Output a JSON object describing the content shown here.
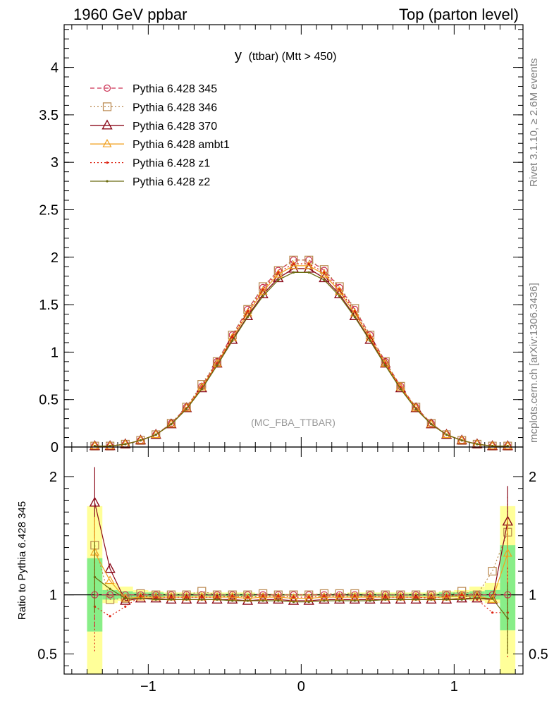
{
  "header": {
    "left": "1960 GeV ppbar",
    "right": "Top (parton level)"
  },
  "side_text": {
    "rivet": "Rivet 3.1.10, ≥ 2.6M events",
    "mcplots": "mcplots.cern.ch [arXiv:1306.3436]"
  },
  "chart_data": {
    "type": "line",
    "title_main": "y",
    "title_sub": "(ttbar) (Mtt > 450)",
    "watermark": "(MC_FBA_TTBAR)",
    "xlim": [
      -1.55,
      1.45
    ],
    "ylim": [
      0,
      4.45
    ],
    "x_ticks": [
      -1,
      0,
      1
    ],
    "x_tick_labels": [
      "−1",
      "0",
      "1"
    ],
    "y_ticks": [
      0,
      0.5,
      1,
      1.5,
      2,
      2.5,
      3,
      3.5,
      4
    ],
    "y_tick_labels": [
      "0",
      "0.5",
      "1",
      "1.5",
      "2",
      "2.5",
      "3",
      "3.5",
      "4"
    ],
    "x": [
      -1.35,
      -1.25,
      -1.15,
      -1.05,
      -0.95,
      -0.85,
      -0.75,
      -0.65,
      -0.55,
      -0.45,
      -0.35,
      -0.25,
      -0.15,
      -0.05,
      0.05,
      0.15,
      0.25,
      0.35,
      0.45,
      0.55,
      0.65,
      0.75,
      0.85,
      0.95,
      1.05,
      1.15,
      1.25,
      1.35
    ],
    "series": [
      {
        "name": "Pythia 6.428 345",
        "color": "#cc3355",
        "dash": "6,4",
        "marker": "circle",
        "values": [
          0.01,
          0.01,
          0.03,
          0.07,
          0.13,
          0.25,
          0.42,
          0.64,
          0.9,
          1.18,
          1.45,
          1.68,
          1.86,
          1.97,
          1.97,
          1.86,
          1.68,
          1.45,
          1.18,
          0.9,
          0.64,
          0.42,
          0.25,
          0.13,
          0.07,
          0.03,
          0.01,
          0.01
        ]
      },
      {
        "name": "Pythia 6.428 346",
        "color": "#b8864b",
        "dash": "2,3",
        "marker": "square",
        "values": [
          0.01,
          0.01,
          0.03,
          0.07,
          0.13,
          0.25,
          0.42,
          0.66,
          0.9,
          1.18,
          1.45,
          1.69,
          1.86,
          1.97,
          1.97,
          1.87,
          1.69,
          1.46,
          1.18,
          0.9,
          0.64,
          0.42,
          0.25,
          0.13,
          0.07,
          0.03,
          0.01,
          0.01
        ]
      },
      {
        "name": "Pythia 6.428 370",
        "color": "#8b0a1a",
        "dash": "",
        "marker": "triangle",
        "values": [
          0.01,
          0.01,
          0.03,
          0.07,
          0.13,
          0.24,
          0.41,
          0.62,
          0.88,
          1.13,
          1.38,
          1.61,
          1.78,
          1.88,
          1.88,
          1.78,
          1.61,
          1.38,
          1.13,
          0.88,
          0.62,
          0.41,
          0.24,
          0.13,
          0.07,
          0.03,
          0.01,
          0.01
        ]
      },
      {
        "name": "Pythia 6.428 ambt1",
        "color": "#f0a020",
        "dash": "",
        "marker": "triangle-open",
        "values": [
          0.01,
          0.01,
          0.03,
          0.07,
          0.13,
          0.24,
          0.41,
          0.63,
          0.88,
          1.15,
          1.41,
          1.64,
          1.82,
          1.91,
          1.91,
          1.82,
          1.64,
          1.41,
          1.15,
          0.88,
          0.63,
          0.41,
          0.24,
          0.13,
          0.07,
          0.03,
          0.01,
          0.01
        ]
      },
      {
        "name": "Pythia 6.428 z1",
        "color": "#dd2211",
        "dash": "2,3",
        "marker": "dot",
        "values": [
          0.01,
          0.01,
          0.03,
          0.07,
          0.13,
          0.24,
          0.41,
          0.63,
          0.88,
          1.16,
          1.43,
          1.66,
          1.84,
          1.93,
          1.93,
          1.84,
          1.66,
          1.43,
          1.16,
          0.88,
          0.63,
          0.41,
          0.24,
          0.13,
          0.07,
          0.03,
          0.01,
          0.01
        ]
      },
      {
        "name": "Pythia 6.428 z2",
        "color": "#6b6b10",
        "dash": "",
        "marker": "dot",
        "values": [
          0.01,
          0.01,
          0.03,
          0.07,
          0.13,
          0.24,
          0.4,
          0.61,
          0.86,
          1.12,
          1.37,
          1.59,
          1.76,
          1.84,
          1.84,
          1.76,
          1.59,
          1.37,
          1.12,
          0.86,
          0.61,
          0.4,
          0.24,
          0.13,
          0.07,
          0.03,
          0.01,
          0.01
        ]
      }
    ],
    "ratio": {
      "ylabel": "Ratio to Pythia 6.428 345",
      "ylim": [
        0.33,
        2.25
      ],
      "y_ticks": [
        0.5,
        1,
        2
      ],
      "y_tick_labels": [
        "0.5",
        "1",
        "2"
      ],
      "band_yellow": [
        [
          0.32,
          1.75
        ],
        [
          0.93,
          1.1
        ],
        [
          0.95,
          1.07
        ],
        [
          0.97,
          1.04
        ],
        [
          0.97,
          1.03
        ],
        [
          0.98,
          1.02
        ],
        [
          0.98,
          1.02
        ],
        [
          0.98,
          1.02
        ],
        [
          0.98,
          1.02
        ],
        [
          0.98,
          1.02
        ],
        [
          0.98,
          1.02
        ],
        [
          0.99,
          1.01
        ],
        [
          0.99,
          1.01
        ],
        [
          0.99,
          1.01
        ],
        [
          0.99,
          1.01
        ],
        [
          0.99,
          1.01
        ],
        [
          0.99,
          1.01
        ],
        [
          0.98,
          1.02
        ],
        [
          0.98,
          1.02
        ],
        [
          0.98,
          1.02
        ],
        [
          0.98,
          1.02
        ],
        [
          0.98,
          1.02
        ],
        [
          0.98,
          1.02
        ],
        [
          0.97,
          1.03
        ],
        [
          0.97,
          1.04
        ],
        [
          0.95,
          1.07
        ],
        [
          0.93,
          1.1
        ],
        [
          0.32,
          1.75
        ]
      ],
      "band_green": [
        [
          0.69,
          1.31
        ],
        [
          0.96,
          1.04
        ],
        [
          0.97,
          1.03
        ],
        [
          0.98,
          1.02
        ],
        [
          0.98,
          1.02
        ],
        [
          0.99,
          1.01
        ],
        [
          0.99,
          1.01
        ],
        [
          0.99,
          1.01
        ],
        [
          0.99,
          1.01
        ],
        [
          0.99,
          1.01
        ],
        [
          0.99,
          1.01
        ],
        [
          0.995,
          1.005
        ],
        [
          0.995,
          1.005
        ],
        [
          0.995,
          1.005
        ],
        [
          0.995,
          1.005
        ],
        [
          0.995,
          1.005
        ],
        [
          0.995,
          1.005
        ],
        [
          0.99,
          1.01
        ],
        [
          0.99,
          1.01
        ],
        [
          0.99,
          1.01
        ],
        [
          0.99,
          1.01
        ],
        [
          0.99,
          1.01
        ],
        [
          0.99,
          1.01
        ],
        [
          0.98,
          1.02
        ],
        [
          0.98,
          1.02
        ],
        [
          0.97,
          1.03
        ],
        [
          0.96,
          1.04
        ],
        [
          0.7,
          1.42
        ]
      ],
      "series_values": [
        [
          1,
          1,
          1,
          1,
          1,
          1,
          1,
          1,
          1,
          1,
          1,
          1,
          1,
          1,
          1,
          1,
          1,
          1,
          1,
          1,
          1,
          1,
          1,
          1,
          1,
          1,
          1,
          1
        ],
        [
          1.42,
          0.96,
          0.97,
          1.01,
          1.0,
          1.0,
          1.0,
          1.03,
          1.0,
          1.0,
          1.0,
          1.01,
          1.0,
          1.0,
          1.0,
          1.01,
          1.01,
          1.01,
          1.0,
          1.0,
          1.0,
          1.0,
          1.0,
          1.0,
          1.03,
          1.0,
          1.2,
          1.53
        ],
        [
          1.78,
          1.22,
          0.95,
          0.97,
          0.97,
          0.96,
          0.96,
          0.96,
          0.96,
          0.96,
          0.95,
          0.96,
          0.96,
          0.95,
          0.95,
          0.96,
          0.96,
          0.96,
          0.96,
          0.96,
          0.96,
          0.96,
          0.96,
          0.96,
          0.97,
          0.97,
          0.96,
          1.62
        ],
        [
          1.36,
          1.12,
          0.97,
          0.98,
          0.98,
          0.98,
          0.98,
          0.98,
          0.98,
          0.98,
          0.97,
          0.98,
          0.98,
          0.97,
          0.97,
          0.98,
          0.98,
          0.98,
          0.98,
          0.98,
          0.98,
          0.98,
          0.98,
          0.98,
          0.99,
          0.99,
          0.96,
          1.35
        ],
        [
          0.9,
          0.82,
          0.9,
          0.99,
          0.98,
          0.98,
          0.98,
          0.98,
          0.98,
          0.99,
          0.98,
          0.99,
          0.99,
          0.98,
          0.98,
          0.99,
          0.99,
          0.99,
          0.99,
          0.98,
          0.98,
          0.98,
          0.97,
          0.99,
          1.0,
          0.96,
          0.85,
          0.85
        ],
        [
          1.15,
          1.05,
          0.97,
          0.97,
          0.96,
          0.96,
          0.96,
          0.96,
          0.96,
          0.95,
          0.95,
          0.95,
          0.95,
          0.94,
          0.94,
          0.95,
          0.95,
          0.95,
          0.95,
          0.96,
          0.96,
          0.96,
          0.96,
          0.96,
          0.96,
          0.97,
          0.97,
          0.8
        ]
      ]
    }
  }
}
